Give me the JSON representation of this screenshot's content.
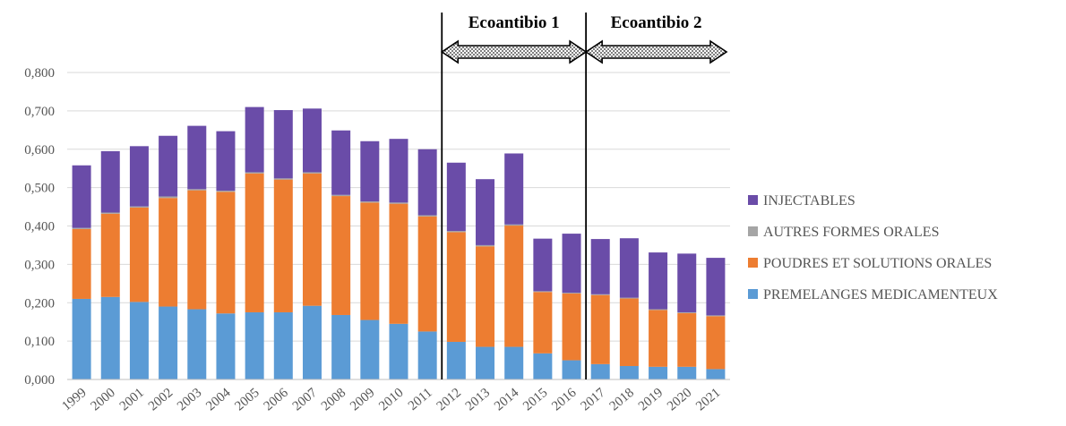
{
  "chart_data": {
    "type": "bar",
    "stacked": true,
    "categories": [
      "1999",
      "2000",
      "2001",
      "2002",
      "2003",
      "2004",
      "2005",
      "2006",
      "2007",
      "2008",
      "2009",
      "2010",
      "2011",
      "2012",
      "2013",
      "2014",
      "2015",
      "2016",
      "2017",
      "2018",
      "2019",
      "2020",
      "2021"
    ],
    "series": [
      {
        "name": "PREMELANGES MEDICAMENTEUX",
        "color": "#5b9bd5",
        "values": [
          0.21,
          0.215,
          0.202,
          0.19,
          0.183,
          0.172,
          0.175,
          0.175,
          0.192,
          0.168,
          0.155,
          0.145,
          0.125,
          0.098,
          0.085,
          0.085,
          0.068,
          0.05,
          0.04,
          0.035,
          0.033,
          0.033,
          0.027
        ]
      },
      {
        "name": "POUDRES ET SOLUTIONS ORALES",
        "color": "#ed7d31",
        "values": [
          0.182,
          0.217,
          0.246,
          0.283,
          0.31,
          0.317,
          0.362,
          0.346,
          0.345,
          0.31,
          0.306,
          0.313,
          0.3,
          0.286,
          0.262,
          0.316,
          0.16,
          0.174,
          0.18,
          0.176,
          0.148,
          0.14,
          0.138
        ]
      },
      {
        "name": "AUTRES FORMES ORALES",
        "color": "#a5a5a5",
        "values": [
          0.003,
          0.003,
          0.003,
          0.004,
          0.003,
          0.003,
          0.003,
          0.003,
          0.003,
          0.003,
          0.003,
          0.003,
          0.003,
          0.003,
          0.003,
          0.003,
          0.002,
          0.002,
          0.002,
          0.002,
          0.002,
          0.002,
          0.002
        ]
      },
      {
        "name": "INJECTABLES",
        "color": "#6a4ca8",
        "values": [
          0.163,
          0.16,
          0.157,
          0.158,
          0.165,
          0.155,
          0.17,
          0.178,
          0.166,
          0.168,
          0.157,
          0.166,
          0.172,
          0.178,
          0.172,
          0.185,
          0.137,
          0.154,
          0.144,
          0.155,
          0.148,
          0.153,
          0.15
        ]
      }
    ],
    "legend_order": [
      "INJECTABLES",
      "AUTRES FORMES ORALES",
      "POUDRES ET SOLUTIONS ORALES",
      "PREMELANGES MEDICAMENTEUX"
    ],
    "legend_position": "right",
    "ylim": [
      0,
      0.8
    ],
    "yticks": [
      "0,000",
      "0,100",
      "0,200",
      "0,300",
      "0,400",
      "0,500",
      "0,600",
      "0,700",
      "0,800"
    ],
    "grid": true,
    "annotations": [
      {
        "label": "Ecoantibio 1",
        "start": "2012",
        "end": "2016"
      },
      {
        "label": "Ecoantibio 2",
        "start": "2017",
        "end": "2021"
      }
    ]
  }
}
